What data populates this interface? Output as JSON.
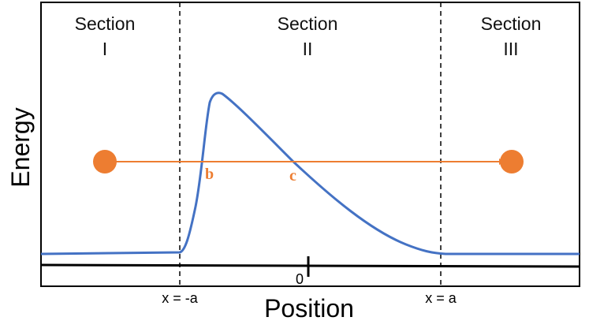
{
  "sections": [
    {
      "title": "Section",
      "numeral": "I"
    },
    {
      "title": "Section",
      "numeral": "II"
    },
    {
      "title": "Section",
      "numeral": "III"
    }
  ],
  "axes": {
    "y_label": "Energy",
    "x_label": "Position",
    "origin_label": "0",
    "left_boundary_label": "x = -a",
    "right_boundary_label": "x = a"
  },
  "points": {
    "b": "b",
    "c": "c"
  },
  "colors": {
    "curve": "#4472c4",
    "particle": "#ed7d31",
    "frame": "#000000",
    "divider": "#000000"
  }
}
